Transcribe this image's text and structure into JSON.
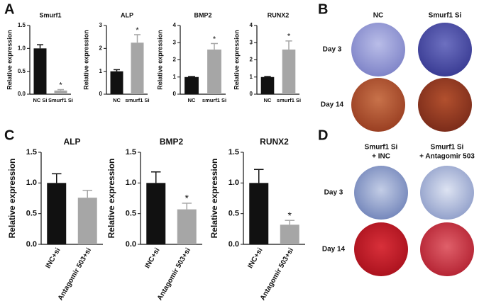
{
  "panel_letters": [
    "A",
    "B",
    "C",
    "D"
  ],
  "image_panel_b": {
    "columns": [
      "NC",
      "Smurf1 Si"
    ],
    "rows": [
      "Day 3",
      "Day 14"
    ]
  },
  "image_panel_d": {
    "columns": [
      [
        "Smurf1 Si",
        "+ INC"
      ],
      [
        "Smurf1 Si",
        "+ Antagomir 503"
      ]
    ],
    "rows": [
      "Day 3",
      "Day 14"
    ]
  },
  "chart_data": [
    {
      "type": "bar",
      "title": "Smurf1",
      "y_label": "Relative expression",
      "categories": [
        "NC Si",
        "Smurf1 Si"
      ],
      "values": [
        1.0,
        0.08
      ],
      "errors": [
        0.08,
        0.02
      ],
      "colors": [
        "#111111",
        "#a6a6a6"
      ],
      "ylim": [
        0,
        1.5
      ],
      "yticks": [
        {
          "value": 0,
          "label": "0.0"
        },
        0.5,
        {
          "value": 1,
          "label": "1.0"
        },
        1.5
      ],
      "bar_annotations": [
        null,
        "*"
      ]
    },
    {
      "type": "bar",
      "title": "ALP",
      "y_label": "Relative expression",
      "categories": [
        "NC",
        "smurf1 Si"
      ],
      "values": [
        1.0,
        2.25
      ],
      "errors": [
        0.07,
        0.35
      ],
      "colors": [
        "#111111",
        "#a6a6a6"
      ],
      "ylim": [
        0,
        3
      ],
      "yticks": [
        0,
        1,
        2,
        3
      ],
      "bar_annotations": [
        null,
        "*"
      ]
    },
    {
      "type": "bar",
      "title": "BMP2",
      "y_label": "Relative expression",
      "categories": [
        "NC",
        "smurf1 Si"
      ],
      "values": [
        1.0,
        2.6
      ],
      "errors": [
        0.03,
        0.35
      ],
      "colors": [
        "#111111",
        "#a6a6a6"
      ],
      "ylim": [
        0,
        4
      ],
      "yticks": [
        0,
        1,
        2,
        3,
        4
      ],
      "bar_annotations": [
        null,
        "*"
      ]
    },
    {
      "type": "bar",
      "title": "RUNX2",
      "y_label": "Relative expression",
      "categories": [
        "NC",
        "smurf1 Si"
      ],
      "values": [
        1.0,
        2.6
      ],
      "errors": [
        0.03,
        0.5
      ],
      "colors": [
        "#111111",
        "#a6a6a6"
      ],
      "ylim": [
        0,
        4
      ],
      "yticks": [
        0,
        1,
        2,
        3,
        4
      ],
      "bar_annotations": [
        null,
        "*"
      ]
    },
    {
      "type": "bar",
      "title": "ALP",
      "y_label": "Relative expression",
      "categories": [
        "INC+si",
        "Antagomir 503+si"
      ],
      "values": [
        1.0,
        0.76
      ],
      "errors": [
        0.15,
        0.12
      ],
      "colors": [
        "#111111",
        "#a6a6a6"
      ],
      "ylim": [
        0,
        1.5
      ],
      "yticks": [
        {
          "value": 0,
          "label": "0.0"
        },
        0.5,
        {
          "value": 1,
          "label": "1.0"
        },
        1.5
      ]
    },
    {
      "type": "bar",
      "title": "BMP2",
      "y_label": "Relative expression",
      "categories": [
        "INC+si",
        "Antagomir 503+si"
      ],
      "values": [
        1.0,
        0.57
      ],
      "errors": [
        0.18,
        0.1
      ],
      "colors": [
        "#111111",
        "#a6a6a6"
      ],
      "ylim": [
        0,
        1.5
      ],
      "yticks": [
        {
          "value": 0,
          "label": "0.0"
        },
        0.5,
        {
          "value": 1,
          "label": "1.0"
        },
        1.5
      ],
      "bar_annotations": [
        null,
        "*"
      ]
    },
    {
      "type": "bar",
      "title": "RUNX2",
      "y_label": "Relative expression",
      "categories": [
        "INC+si",
        "Antagomir 503+si"
      ],
      "values": [
        1.0,
        0.32
      ],
      "errors": [
        0.22,
        0.07
      ],
      "colors": [
        "#111111",
        "#a6a6a6"
      ],
      "ylim": [
        0,
        1.5
      ],
      "yticks": [
        {
          "value": 0,
          "label": "0.0"
        },
        0.5,
        {
          "value": 1,
          "label": "1.0"
        },
        1.5
      ],
      "bar_annotations": [
        null,
        "*"
      ]
    }
  ]
}
